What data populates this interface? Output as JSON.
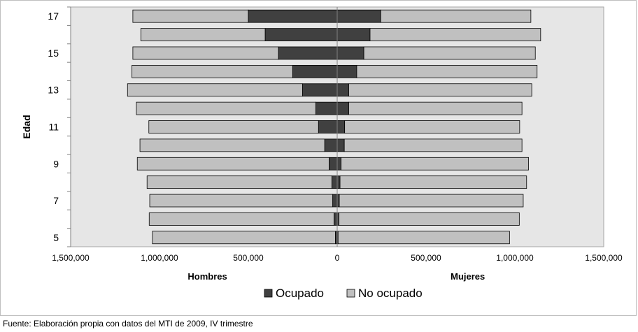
{
  "chart_data": {
    "type": "bar",
    "orientation": "horizontal",
    "layout": "population-pyramid",
    "categories": [
      5,
      6,
      7,
      8,
      9,
      10,
      11,
      12,
      13,
      14,
      15,
      16,
      17
    ],
    "y_tick_labels": [
      "5",
      "7",
      "9",
      "11",
      "13",
      "15",
      "17"
    ],
    "ylabel": "Edad",
    "xlim": [
      -1500000,
      1500000
    ],
    "x_tick_labels": [
      "1,500,000",
      "1,000,000",
      "500,000",
      "0",
      "500,000",
      "1,000,000",
      "1,500,000"
    ],
    "x_tick_values": [
      -1500000,
      -1000000,
      -500000,
      0,
      500000,
      1000000,
      1500000
    ],
    "left_label": "Hombres",
    "right_label": "Mujeres",
    "stacked": true,
    "series": [
      {
        "name": "Ocupado",
        "color": "#404040",
        "hombres": [
          10000,
          18000,
          25000,
          30000,
          45000,
          70000,
          105000,
          120000,
          195000,
          250000,
          330000,
          405000,
          500000
        ],
        "mujeres": [
          5000,
          10000,
          12000,
          16000,
          22000,
          40000,
          42000,
          65000,
          65000,
          110000,
          150000,
          185000,
          245000
        ]
      },
      {
        "name": "No ocupado",
        "color": "#c0c0c0",
        "hombres": [
          1030000,
          1040000,
          1030000,
          1040000,
          1080000,
          1040000,
          955000,
          1010000,
          985000,
          905000,
          820000,
          700000,
          650000
        ],
        "mujeres": [
          965000,
          1015000,
          1035000,
          1050000,
          1055000,
          1000000,
          985000,
          975000,
          1030000,
          1015000,
          965000,
          960000,
          845000
        ]
      }
    ],
    "legend_position": "bottom",
    "grid": false,
    "plot_background": "#e6e6e6"
  },
  "source_note": "Fuente: Elaboración propia con datos del MTI de 2009, IV trimestre"
}
